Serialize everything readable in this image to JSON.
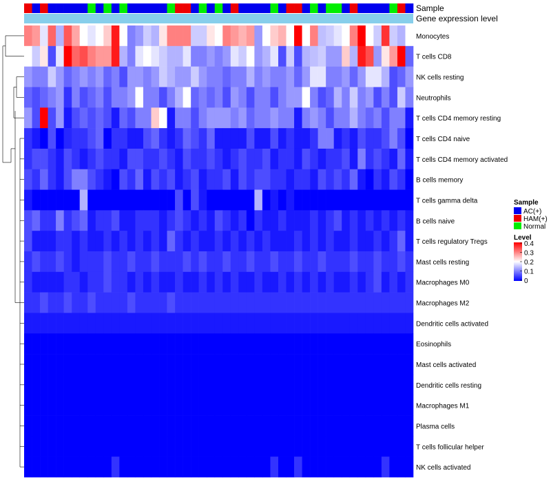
{
  "chart_data": {
    "type": "heatmap",
    "title": "",
    "annotations": {
      "sample_label": "Sample",
      "gene_label": "Gene expression level"
    },
    "samples": [
      "HAM(+)",
      "AC(+)",
      "HAM(+)",
      "AC(+)",
      "AC(+)",
      "AC(+)",
      "AC(+)",
      "AC(+)",
      "Normal",
      "AC(+)",
      "Normal",
      "AC(+)",
      "Normal",
      "AC(+)",
      "AC(+)",
      "AC(+)",
      "AC(+)",
      "AC(+)",
      "Normal",
      "HAM(+)",
      "HAM(+)",
      "AC(+)",
      "Normal",
      "AC(+)",
      "Normal",
      "AC(+)",
      "HAM(+)",
      "AC(+)",
      "AC(+)",
      "AC(+)",
      "AC(+)",
      "Normal",
      "AC(+)",
      "HAM(+)",
      "HAM(+)",
      "AC(+)",
      "Normal",
      "AC(+)",
      "Normal",
      "Normal",
      "AC(+)",
      "HAM(+)",
      "AC(+)",
      "AC(+)",
      "AC(+)",
      "AC(+)",
      "Normal",
      "HAM(+)",
      "AC(+)"
    ],
    "rows": [
      "Monocytes",
      "T cells CD8",
      "NK cells resting",
      "Neutrophils",
      "T cells CD4 memory resting",
      "T cells CD4 naive",
      "T cells CD4 memory activated",
      "B cells memory",
      "T cells gamma delta",
      "B cells naive",
      "T cells regulatory  Tregs",
      "Mast cells resting",
      "Macrophages M0",
      "Macrophages M2",
      "Dendritic cells activated",
      "Eosinophils",
      "Mast cells activated",
      "Dendritic cells resting",
      "Macrophages M1",
      "Plasma cells",
      "T cells follicular helper",
      "NK cells activated"
    ],
    "values": [
      [
        0.3,
        0.28,
        0.18,
        0.32,
        0.14,
        0.33,
        0.27,
        0.2,
        0.18,
        0.2,
        0.24,
        0.38,
        0.2,
        0.1,
        0.12,
        0.16,
        0.14,
        0.22,
        0.3,
        0.3,
        0.3,
        0.16,
        0.16,
        0.22,
        0.2,
        0.3,
        0.28,
        0.26,
        0.28,
        0.12,
        0.2,
        0.24,
        0.26,
        0.2,
        0.4,
        0.2,
        0.3,
        0.15,
        0.16,
        0.18,
        0.2,
        0.3,
        0.4,
        0.2,
        0.16,
        0.36,
        0.16,
        0.14,
        0.2
      ],
      [
        0.2,
        0.16,
        0.22,
        0.06,
        0.18,
        0.4,
        0.32,
        0.34,
        0.3,
        0.28,
        0.28,
        0.38,
        0.14,
        0.1,
        0.18,
        0.2,
        0.18,
        0.16,
        0.14,
        0.14,
        0.18,
        0.1,
        0.1,
        0.12,
        0.1,
        0.12,
        0.18,
        0.16,
        0.2,
        0.12,
        0.14,
        0.18,
        0.06,
        0.16,
        0.06,
        0.14,
        0.15,
        0.16,
        0.12,
        0.12,
        0.24,
        0.14,
        0.38,
        0.34,
        0.12,
        0.22,
        0.28,
        0.4,
        0.08
      ],
      [
        0.12,
        0.1,
        0.1,
        0.16,
        0.12,
        0.08,
        0.1,
        0.12,
        0.1,
        0.12,
        0.08,
        0.1,
        0.06,
        0.12,
        0.12,
        0.1,
        0.12,
        0.16,
        0.14,
        0.12,
        0.12,
        0.16,
        0.12,
        0.1,
        0.1,
        0.08,
        0.1,
        0.1,
        0.14,
        0.1,
        0.12,
        0.1,
        0.1,
        0.12,
        0.08,
        0.12,
        0.18,
        0.18,
        0.1,
        0.1,
        0.12,
        0.08,
        0.12,
        0.18,
        0.18,
        0.14,
        0.06,
        0.08,
        0.12
      ],
      [
        0.08,
        0.06,
        0.08,
        0.1,
        0.12,
        0.04,
        0.1,
        0.06,
        0.08,
        0.1,
        0.06,
        0.1,
        0.1,
        0.12,
        0.2,
        0.1,
        0.1,
        0.06,
        0.1,
        0.14,
        0.2,
        0.08,
        0.1,
        0.08,
        0.1,
        0.06,
        0.12,
        0.1,
        0.06,
        0.1,
        0.1,
        0.06,
        0.1,
        0.12,
        0.12,
        0.2,
        0.1,
        0.06,
        0.08,
        0.14,
        0.1,
        0.16,
        0.1,
        0.12,
        0.06,
        0.1,
        0.06,
        0.16,
        0.1
      ],
      [
        0.12,
        0.06,
        0.4,
        0.06,
        0.12,
        0.02,
        0.06,
        0.08,
        0.06,
        0.08,
        0.06,
        0.02,
        0.08,
        0.06,
        0.1,
        0.1,
        0.24,
        0.2,
        0.02,
        0.1,
        0.1,
        0.06,
        0.1,
        0.12,
        0.12,
        0.12,
        0.1,
        0.12,
        0.08,
        0.1,
        0.1,
        0.12,
        0.1,
        0.1,
        0.02,
        0.1,
        0.12,
        0.1,
        0.06,
        0.1,
        0.1,
        0.14,
        0.1,
        0.08,
        0.1,
        0.06,
        0.1,
        0.1,
        0.02
      ],
      [
        0.04,
        0.02,
        0.0,
        0.06,
        0.0,
        0.03,
        0.04,
        0.04,
        0.06,
        0.08,
        0.0,
        0.04,
        0.04,
        0.02,
        0.02,
        0.06,
        0.08,
        0.04,
        0.02,
        0.04,
        0.08,
        0.06,
        0.04,
        0.08,
        0.02,
        0.02,
        0.02,
        0.02,
        0.06,
        0.02,
        0.02,
        0.06,
        0.02,
        0.04,
        0.02,
        0.02,
        0.04,
        0.1,
        0.1,
        0.02,
        0.04,
        0.02,
        0.06,
        0.04,
        0.04,
        0.06,
        0.1,
        0.06,
        0.0
      ],
      [
        0.04,
        0.06,
        0.06,
        0.04,
        0.02,
        0.06,
        0.04,
        0.02,
        0.04,
        0.06,
        0.04,
        0.04,
        0.02,
        0.06,
        0.06,
        0.04,
        0.04,
        0.06,
        0.04,
        0.02,
        0.06,
        0.04,
        0.04,
        0.06,
        0.04,
        0.02,
        0.04,
        0.06,
        0.04,
        0.04,
        0.06,
        0.02,
        0.04,
        0.04,
        0.02,
        0.06,
        0.04,
        0.02,
        0.04,
        0.04,
        0.06,
        0.02,
        0.1,
        0.04,
        0.06,
        0.04,
        0.02,
        0.08,
        0.02
      ],
      [
        0.06,
        0.04,
        0.08,
        0.04,
        0.02,
        0.06,
        0.1,
        0.1,
        0.06,
        0.04,
        0.02,
        0.0,
        0.06,
        0.04,
        0.08,
        0.02,
        0.06,
        0.04,
        0.06,
        0.02,
        0.04,
        0.06,
        0.02,
        0.04,
        0.04,
        0.06,
        0.02,
        0.06,
        0.04,
        0.06,
        0.06,
        0.04,
        0.04,
        0.02,
        0.04,
        0.04,
        0.02,
        0.06,
        0.04,
        0.06,
        0.04,
        0.08,
        0.02,
        0.0,
        0.04,
        0.02,
        0.06,
        0.04,
        0.0
      ],
      [
        0.02,
        0.0,
        0.0,
        0.0,
        0.0,
        0.0,
        0.0,
        0.14,
        0.0,
        0.0,
        0.0,
        0.0,
        0.0,
        0.0,
        0.0,
        0.0,
        0.0,
        0.0,
        0.0,
        0.06,
        0.0,
        0.06,
        0.02,
        0.0,
        0.0,
        0.0,
        0.0,
        0.0,
        0.0,
        0.14,
        0.0,
        0.02,
        0.0,
        0.02,
        0.0,
        0.0,
        0.0,
        0.0,
        0.0,
        0.0,
        0.0,
        0.0,
        0.0,
        0.0,
        0.0,
        0.0,
        0.0,
        0.0,
        0.0
      ],
      [
        0.06,
        0.08,
        0.04,
        0.04,
        0.1,
        0.04,
        0.06,
        0.08,
        0.02,
        0.04,
        0.04,
        0.06,
        0.02,
        0.02,
        0.04,
        0.04,
        0.04,
        0.02,
        0.04,
        0.06,
        0.04,
        0.02,
        0.04,
        0.02,
        0.06,
        0.04,
        0.02,
        0.04,
        0.0,
        0.04,
        0.02,
        0.02,
        0.04,
        0.02,
        0.02,
        0.02,
        0.04,
        0.02,
        0.04,
        0.06,
        0.02,
        0.04,
        0.02,
        0.04,
        0.02,
        0.04,
        0.02,
        0.04,
        0.02
      ],
      [
        0.06,
        0.02,
        0.02,
        0.02,
        0.04,
        0.04,
        0.02,
        0.04,
        0.02,
        0.02,
        0.04,
        0.02,
        0.04,
        0.02,
        0.04,
        0.02,
        0.04,
        0.02,
        0.08,
        0.04,
        0.02,
        0.04,
        0.02,
        0.02,
        0.04,
        0.02,
        0.04,
        0.02,
        0.04,
        0.02,
        0.04,
        0.02,
        0.02,
        0.02,
        0.04,
        0.02,
        0.04,
        0.02,
        0.04,
        0.02,
        0.02,
        0.04,
        0.02,
        0.02,
        0.04,
        0.02,
        0.04,
        0.08,
        0.02
      ],
      [
        0.04,
        0.06,
        0.04,
        0.04,
        0.06,
        0.04,
        0.02,
        0.04,
        0.04,
        0.04,
        0.06,
        0.04,
        0.04,
        0.06,
        0.04,
        0.04,
        0.06,
        0.04,
        0.04,
        0.04,
        0.06,
        0.04,
        0.06,
        0.04,
        0.04,
        0.06,
        0.04,
        0.04,
        0.06,
        0.04,
        0.04,
        0.06,
        0.04,
        0.04,
        0.06,
        0.04,
        0.04,
        0.06,
        0.04,
        0.04,
        0.04,
        0.06,
        0.04,
        0.04,
        0.06,
        0.04,
        0.04,
        0.06,
        0.04
      ],
      [
        0.04,
        0.02,
        0.02,
        0.02,
        0.02,
        0.04,
        0.04,
        0.02,
        0.04,
        0.04,
        0.06,
        0.04,
        0.04,
        0.02,
        0.04,
        0.02,
        0.04,
        0.02,
        0.02,
        0.04,
        0.02,
        0.02,
        0.04,
        0.02,
        0.04,
        0.02,
        0.04,
        0.02,
        0.02,
        0.04,
        0.02,
        0.02,
        0.04,
        0.02,
        0.04,
        0.02,
        0.04,
        0.02,
        0.04,
        0.02,
        0.02,
        0.04,
        0.02,
        0.04,
        0.06,
        0.02,
        0.04,
        0.02,
        0.04
      ],
      [
        0.04,
        0.04,
        0.06,
        0.04,
        0.04,
        0.06,
        0.04,
        0.04,
        0.06,
        0.04,
        0.04,
        0.04,
        0.04,
        0.06,
        0.04,
        0.04,
        0.04,
        0.04,
        0.06,
        0.04,
        0.04,
        0.04,
        0.04,
        0.04,
        0.04,
        0.04,
        0.04,
        0.04,
        0.04,
        0.04,
        0.04,
        0.04,
        0.04,
        0.04,
        0.04,
        0.04,
        0.04,
        0.04,
        0.04,
        0.04,
        0.04,
        0.04,
        0.04,
        0.04,
        0.04,
        0.04,
        0.04,
        0.04,
        0.04
      ],
      [
        0.02,
        0.02,
        0.02,
        0.02,
        0.02,
        0.02,
        0.02,
        0.02,
        0.02,
        0.02,
        0.02,
        0.02,
        0.02,
        0.02,
        0.02,
        0.02,
        0.02,
        0.02,
        0.02,
        0.02,
        0.02,
        0.02,
        0.02,
        0.02,
        0.02,
        0.02,
        0.02,
        0.02,
        0.02,
        0.02,
        0.02,
        0.02,
        0.02,
        0.02,
        0.02,
        0.02,
        0.02,
        0.02,
        0.02,
        0.02,
        0.02,
        0.02,
        0.02,
        0.02,
        0.02,
        0.02,
        0.02,
        0.02,
        0.02
      ],
      [
        0.0,
        0.0,
        0.0,
        0.0,
        0.0,
        0.0,
        0.0,
        0.0,
        0.0,
        0.0,
        0.0,
        0.0,
        0.0,
        0.0,
        0.0,
        0.0,
        0.0,
        0.0,
        0.0,
        0.0,
        0.0,
        0.0,
        0.0,
        0.0,
        0.0,
        0.0,
        0.0,
        0.0,
        0.0,
        0.0,
        0.0,
        0.0,
        0.0,
        0.0,
        0.0,
        0.0,
        0.0,
        0.0,
        0.0,
        0.0,
        0.0,
        0.0,
        0.0,
        0.0,
        0.0,
        0.0,
        0.0,
        0.0,
        0.0
      ],
      [
        0.0,
        0.0,
        0.0,
        0.0,
        0.0,
        0.0,
        0.0,
        0.0,
        0.0,
        0.0,
        0.0,
        0.0,
        0.0,
        0.0,
        0.0,
        0.0,
        0.0,
        0.0,
        0.0,
        0.0,
        0.0,
        0.0,
        0.0,
        0.0,
        0.0,
        0.0,
        0.0,
        0.0,
        0.0,
        0.0,
        0.0,
        0.0,
        0.0,
        0.0,
        0.0,
        0.0,
        0.0,
        0.0,
        0.0,
        0.0,
        0.0,
        0.0,
        0.0,
        0.0,
        0.0,
        0.0,
        0.0,
        0.0,
        0.0
      ],
      [
        0.0,
        0.0,
        0.0,
        0.0,
        0.0,
        0.0,
        0.0,
        0.0,
        0.0,
        0.0,
        0.0,
        0.0,
        0.0,
        0.0,
        0.0,
        0.0,
        0.0,
        0.0,
        0.0,
        0.0,
        0.0,
        0.0,
        0.0,
        0.0,
        0.0,
        0.0,
        0.0,
        0.0,
        0.0,
        0.0,
        0.0,
        0.0,
        0.0,
        0.0,
        0.0,
        0.0,
        0.0,
        0.0,
        0.0,
        0.0,
        0.0,
        0.0,
        0.0,
        0.0,
        0.0,
        0.0,
        0.0,
        0.0,
        0.0
      ],
      [
        0.0,
        0.0,
        0.0,
        0.0,
        0.0,
        0.0,
        0.0,
        0.0,
        0.0,
        0.0,
        0.0,
        0.0,
        0.0,
        0.0,
        0.0,
        0.0,
        0.0,
        0.0,
        0.0,
        0.0,
        0.0,
        0.0,
        0.0,
        0.0,
        0.0,
        0.0,
        0.0,
        0.0,
        0.0,
        0.0,
        0.0,
        0.0,
        0.0,
        0.0,
        0.0,
        0.0,
        0.0,
        0.0,
        0.0,
        0.0,
        0.0,
        0.0,
        0.0,
        0.0,
        0.0,
        0.0,
        0.0,
        0.0,
        0.0
      ],
      [
        0.0,
        0.0,
        0.0,
        0.0,
        0.0,
        0.0,
        0.0,
        0.0,
        0.0,
        0.0,
        0.0,
        0.0,
        0.0,
        0.0,
        0.0,
        0.0,
        0.0,
        0.0,
        0.0,
        0.0,
        0.0,
        0.0,
        0.0,
        0.0,
        0.0,
        0.0,
        0.0,
        0.0,
        0.0,
        0.0,
        0.0,
        0.0,
        0.0,
        0.0,
        0.0,
        0.0,
        0.0,
        0.0,
        0.0,
        0.0,
        0.0,
        0.0,
        0.0,
        0.0,
        0.0,
        0.0,
        0.0,
        0.0,
        0.0
      ],
      [
        0.0,
        0.0,
        0.0,
        0.0,
        0.0,
        0.0,
        0.0,
        0.0,
        0.0,
        0.0,
        0.0,
        0.0,
        0.0,
        0.0,
        0.0,
        0.0,
        0.0,
        0.0,
        0.0,
        0.0,
        0.0,
        0.0,
        0.0,
        0.0,
        0.0,
        0.0,
        0.0,
        0.0,
        0.0,
        0.0,
        0.0,
        0.0,
        0.0,
        0.0,
        0.0,
        0.0,
        0.0,
        0.0,
        0.0,
        0.0,
        0.0,
        0.0,
        0.0,
        0.0,
        0.0,
        0.0,
        0.0,
        0.0,
        0.0
      ],
      [
        0.0,
        0.0,
        0.0,
        0.0,
        0.0,
        0.0,
        0.0,
        0.0,
        0.0,
        0.0,
        0.0,
        0.04,
        0.0,
        0.0,
        0.0,
        0.0,
        0.0,
        0.0,
        0.0,
        0.0,
        0.0,
        0.0,
        0.0,
        0.0,
        0.0,
        0.0,
        0.0,
        0.0,
        0.0,
        0.0,
        0.0,
        0.04,
        0.0,
        0.0,
        0.04,
        0.0,
        0.0,
        0.0,
        0.0,
        0.0,
        0.0,
        0.0,
        0.0,
        0.0,
        0.0,
        0.04,
        0.0,
        0.0,
        0.0
      ]
    ],
    "legend": {
      "sample_title": "Sample",
      "sample_entries": [
        {
          "label": "AC(+)",
          "color": "#0000ee"
        },
        {
          "label": "HAM(+)",
          "color": "#ee0000"
        },
        {
          "label": "Normal",
          "color": "#00ee00"
        }
      ],
      "level_title": "Level",
      "level_ticks": [
        0.4,
        0.3,
        0.2,
        0.1,
        0
      ],
      "level_range": [
        0,
        0.4
      ],
      "level_colors": {
        "low": "#0000ff",
        "mid": "#ffffff",
        "high": "#ff0000"
      }
    },
    "gene_bar_color": "#87ceeb",
    "grid": false,
    "legend_position": "right"
  }
}
